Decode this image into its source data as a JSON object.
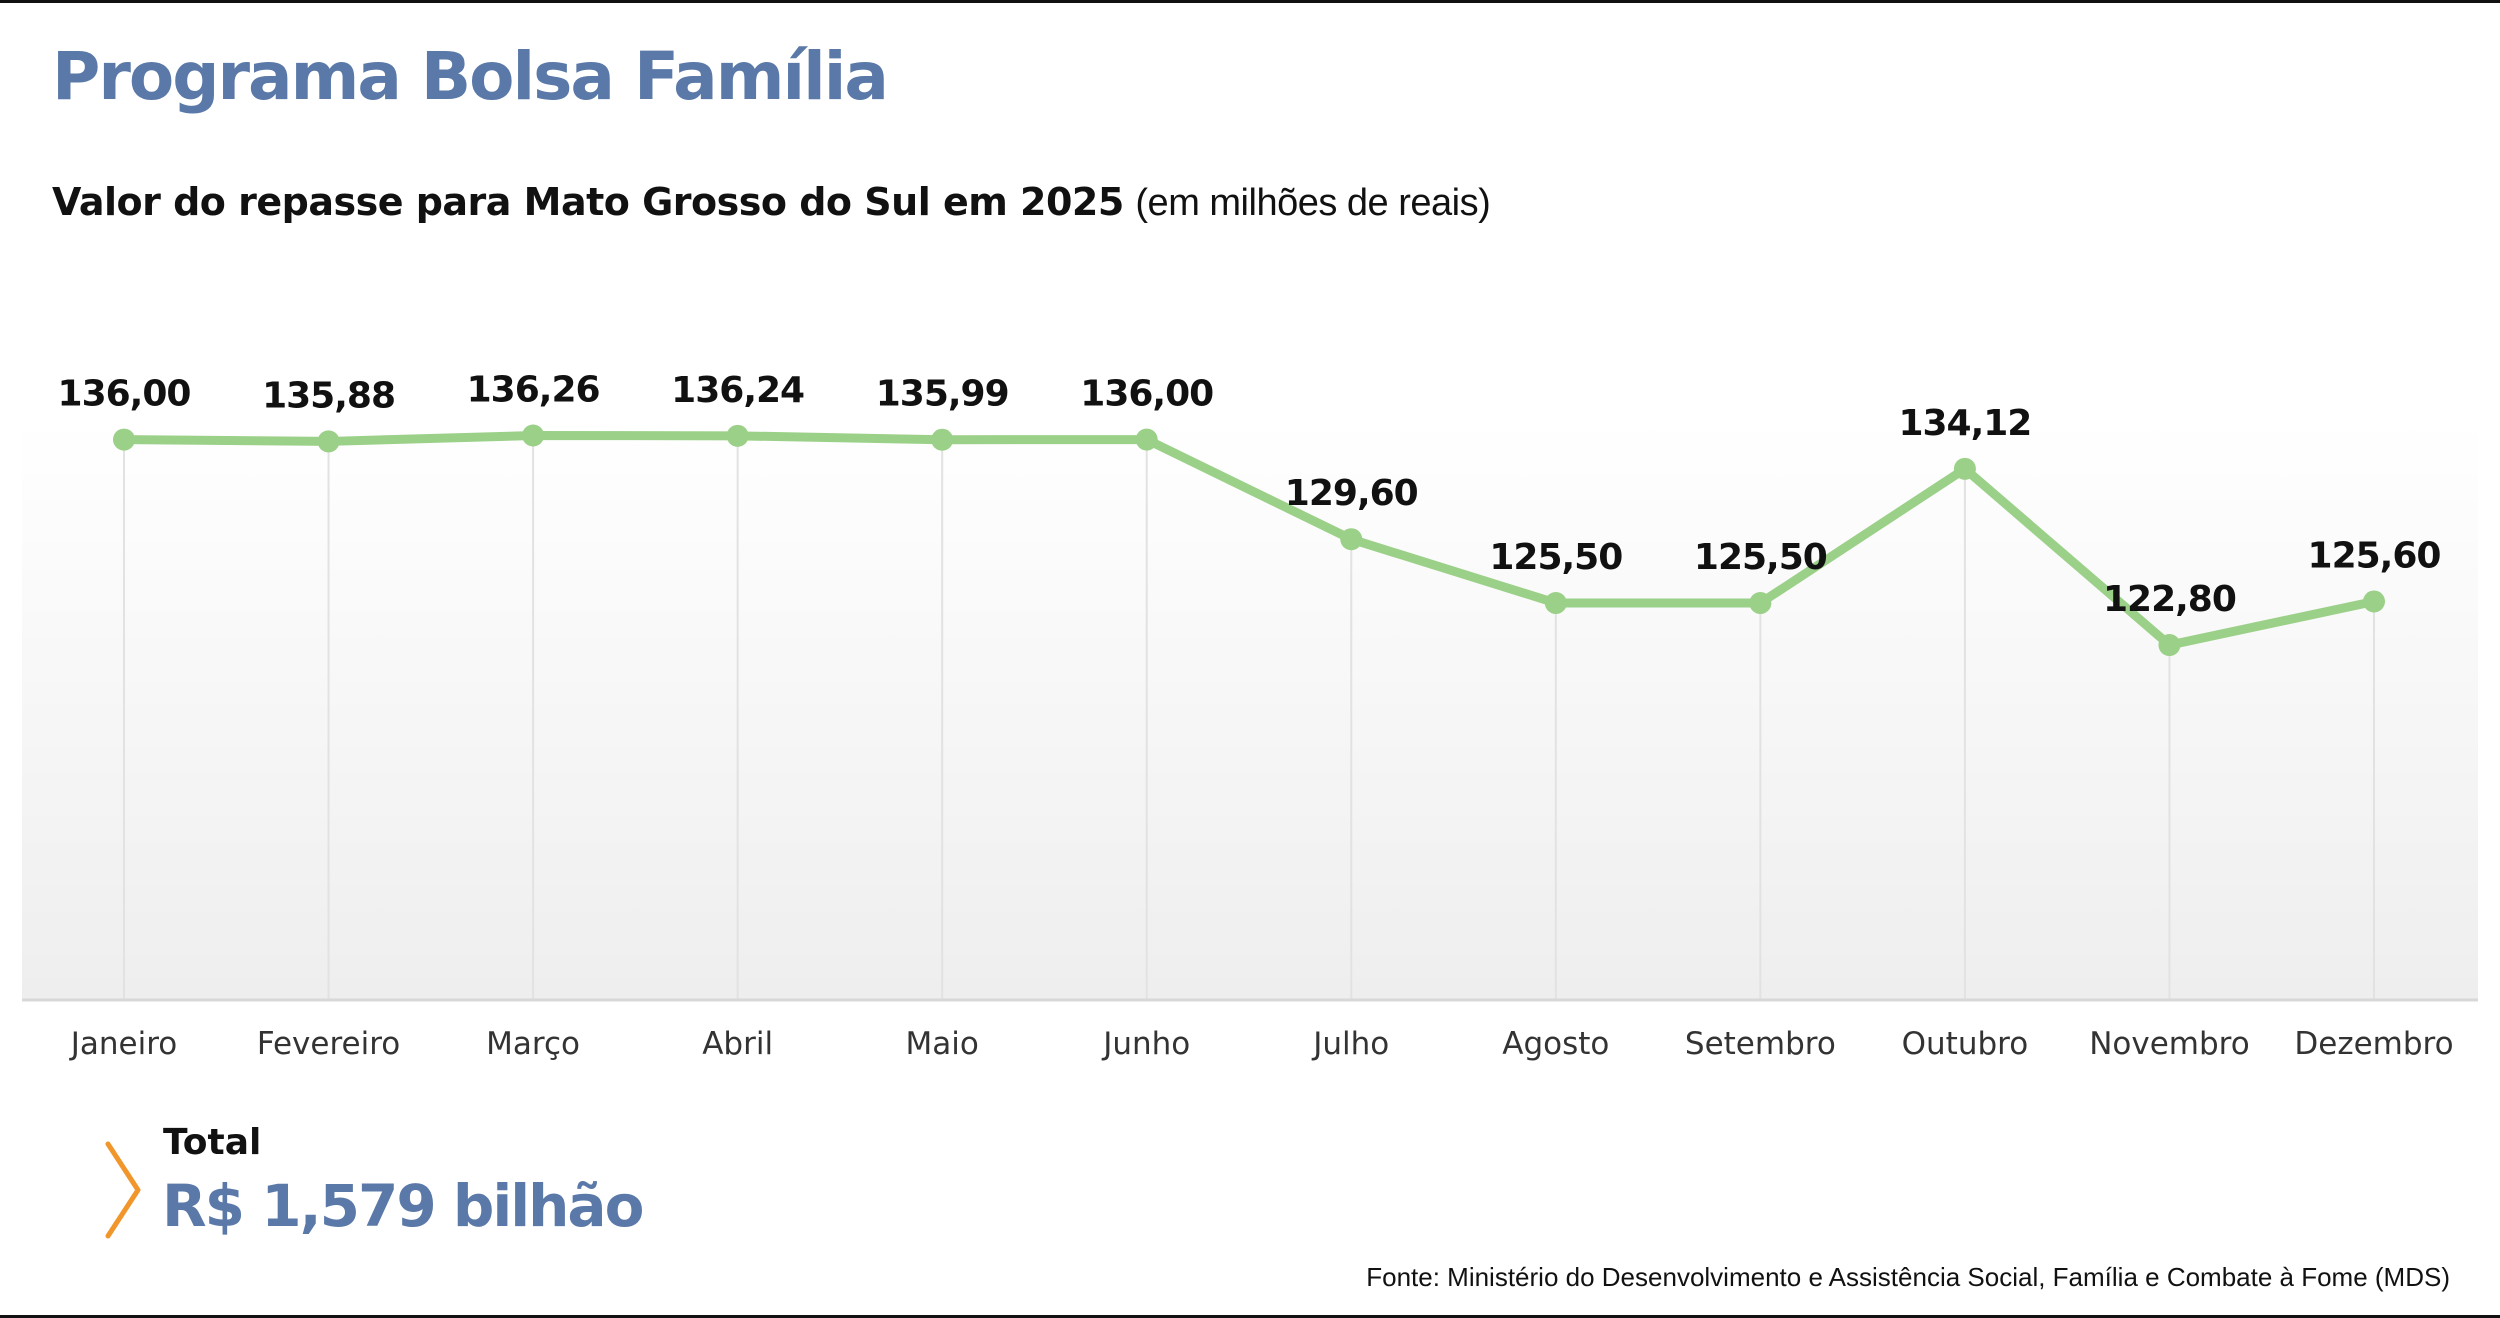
{
  "header": {
    "title": "Programa Bolsa Família",
    "subtitle_main": "Valor do repasse para Mato Grosso do Sul em 2025",
    "subtitle_unit": "(em milhões de reais)"
  },
  "total": {
    "label": "Total",
    "value": "R$ 1,579 bilhão"
  },
  "source": "Fonte: Ministério do Desenvolvimento e Assistência Social, Família e Combate à Fome (MDS)",
  "colors": {
    "title": "#5a79a8",
    "line": "#9bd088",
    "point": "#9bd088",
    "chevron": "#f0962b",
    "grid": "#e2e2e2",
    "axis": "#d8d8d8"
  },
  "chart_data": {
    "type": "line",
    "title": "Valor do repasse para Mato Grosso do Sul em 2025",
    "xlabel": "",
    "ylabel": "em milhões de reais",
    "ylim": [
      100,
      137
    ],
    "grid": true,
    "categories": [
      "Janeiro",
      "Fevereiro",
      "Março",
      "Abril",
      "Maio",
      "Junho",
      "Julho",
      "Agosto",
      "Setembro",
      "Outubro",
      "Novembro",
      "Dezembro"
    ],
    "values": [
      136.0,
      135.88,
      136.26,
      136.24,
      135.99,
      136.0,
      129.6,
      125.5,
      125.5,
      134.12,
      122.8,
      125.6
    ],
    "labels": [
      "136,00",
      "135,88",
      "136,26",
      "136,24",
      "135,99",
      "136,00",
      "129,60",
      "125,50",
      "125,50",
      "134,12",
      "122,80",
      "125,60"
    ]
  }
}
